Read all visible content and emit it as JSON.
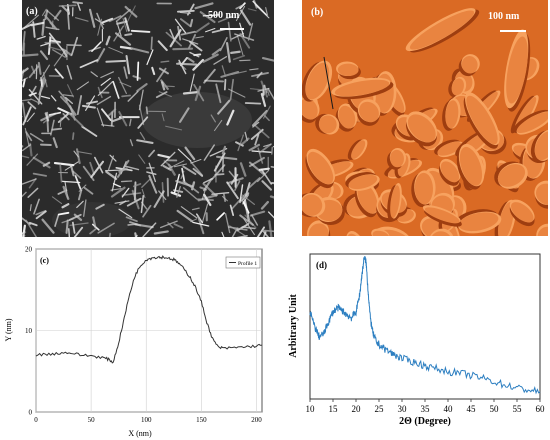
{
  "panel_a": {
    "label": "(a)",
    "scale_label": "500 nm"
  },
  "panel_b": {
    "label": "(b)",
    "scale_label": "100 nm"
  },
  "chart_data": [
    {
      "type": "line",
      "panel": "(c)",
      "xlabel": "X (nm)",
      "ylabel": "Y (nm)",
      "xlim": [
        0,
        205
      ],
      "ylim": [
        0,
        20
      ],
      "xticks": [
        0,
        50,
        100,
        150,
        200
      ],
      "yticks": [
        0,
        10,
        20
      ],
      "grid": true,
      "legend": "top-right",
      "series": [
        {
          "name": "Profile 1",
          "x": [
            0,
            10,
            20,
            30,
            40,
            50,
            60,
            65,
            70,
            75,
            80,
            85,
            90,
            95,
            100,
            105,
            110,
            115,
            120,
            125,
            130,
            135,
            140,
            145,
            150,
            155,
            160,
            165,
            170,
            180,
            190,
            200,
            205
          ],
          "y": [
            7.0,
            7.1,
            7.2,
            7.3,
            7.0,
            6.9,
            6.7,
            6.5,
            6.1,
            8.5,
            11.5,
            14.5,
            16.8,
            18.0,
            18.7,
            18.9,
            19.0,
            19.0,
            18.9,
            18.7,
            18.2,
            17.4,
            16.5,
            15.2,
            13.5,
            11.0,
            9.0,
            8.0,
            7.8,
            7.9,
            8.0,
            8.1,
            8.2
          ]
        }
      ]
    },
    {
      "type": "line",
      "panel": "(d)",
      "xlabel": "2Θ (Degree)",
      "ylabel": "Arbitrary Unit",
      "xlim": [
        10,
        60
      ],
      "xticks": [
        10,
        15,
        20,
        25,
        30,
        35,
        40,
        45,
        50,
        55,
        60
      ],
      "series": [
        {
          "x": [
            10,
            11,
            12,
            13,
            14,
            15,
            16,
            17,
            18,
            19,
            20,
            20.8,
            21.3,
            21.8,
            22.2,
            22.6,
            23.1,
            23.7,
            24.5,
            26,
            28,
            30,
            33,
            36,
            40,
            44,
            48,
            52,
            56,
            60
          ],
          "y": [
            0.6,
            0.5,
            0.43,
            0.45,
            0.53,
            0.6,
            0.63,
            0.61,
            0.58,
            0.56,
            0.6,
            0.72,
            0.86,
            0.98,
            0.94,
            0.76,
            0.56,
            0.45,
            0.39,
            0.35,
            0.31,
            0.28,
            0.25,
            0.22,
            0.19,
            0.17,
            0.14,
            0.1,
            0.07,
            0.05
          ]
        }
      ]
    }
  ]
}
